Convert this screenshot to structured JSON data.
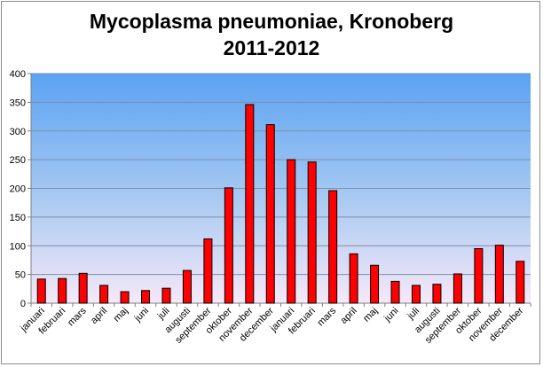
{
  "chart_data": {
    "type": "bar",
    "title": "Mycoplasma pneumoniae, Kronoberg",
    "subtitle": "2011-2012",
    "xlabel": "",
    "ylabel": "",
    "ylim": [
      0,
      400
    ],
    "yticks": [
      0,
      50,
      100,
      150,
      200,
      250,
      300,
      350,
      400
    ],
    "grid": true,
    "legend": "none",
    "bar_color": "#ff0000",
    "categories": [
      "januari",
      "februari",
      "mars",
      "april",
      "maj",
      "juni",
      "juli",
      "augusti",
      "september",
      "oktober",
      "november",
      "december",
      "januari",
      "februari",
      "mars",
      "april",
      "maj",
      "juni",
      "juli",
      "augusti",
      "september",
      "oktober",
      "november",
      "december"
    ],
    "values": [
      42,
      43,
      52,
      31,
      20,
      22,
      26,
      57,
      112,
      201,
      346,
      311,
      250,
      246,
      196,
      86,
      66,
      38,
      31,
      33,
      51,
      95,
      101,
      73
    ]
  }
}
